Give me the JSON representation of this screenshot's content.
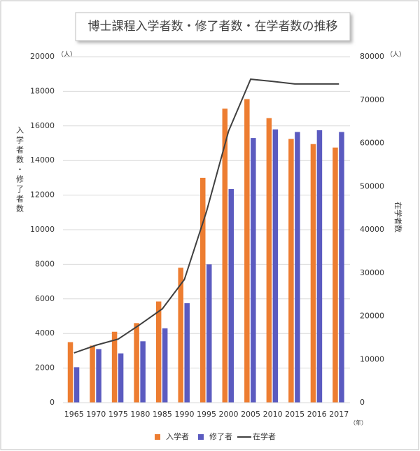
{
  "chart_data": {
    "type": "bar",
    "title": "博士課程入学者数・修了者数・在学者数の推移",
    "y_label": "入学者数・修了者数",
    "y2_label": "在学者数",
    "y_unit": "（人）",
    "y2_unit": "（人）",
    "x_unit": "（年）",
    "categories": [
      "1965",
      "1970",
      "1975",
      "1980",
      "1985",
      "1990",
      "1995",
      "2000",
      "2005",
      "2010",
      "2015",
      "2016",
      "2017"
    ],
    "series": [
      {
        "name": "入学者",
        "type": "bar",
        "color": "#ed7d31",
        "values": [
          3500,
          3300,
          4100,
          4600,
          5850,
          7800,
          13000,
          17000,
          17550,
          16450,
          15250,
          14950,
          14750
        ]
      },
      {
        "name": "修了者",
        "type": "bar",
        "color": "#5b5bc0",
        "values": [
          2050,
          3100,
          2850,
          3550,
          4300,
          5750,
          8000,
          12350,
          15300,
          15800,
          15650,
          15750,
          15650
        ]
      },
      {
        "name": "在学者",
        "type": "line",
        "axis": "y2",
        "color": "#404040",
        "values": [
          11500,
          13300,
          14700,
          18100,
          21700,
          28500,
          44200,
          62800,
          74800,
          74300,
          73700,
          73700,
          73700
        ]
      }
    ],
    "ylim": [
      0,
      20000
    ],
    "yticks": [
      0,
      2000,
      4000,
      6000,
      8000,
      10000,
      12000,
      14000,
      16000,
      18000,
      20000
    ],
    "y2lim": [
      0,
      80000
    ],
    "y2ticks": [
      0,
      10000,
      20000,
      30000,
      40000,
      50000,
      60000,
      70000,
      80000
    ],
    "grid": true,
    "legend": "bottom"
  }
}
